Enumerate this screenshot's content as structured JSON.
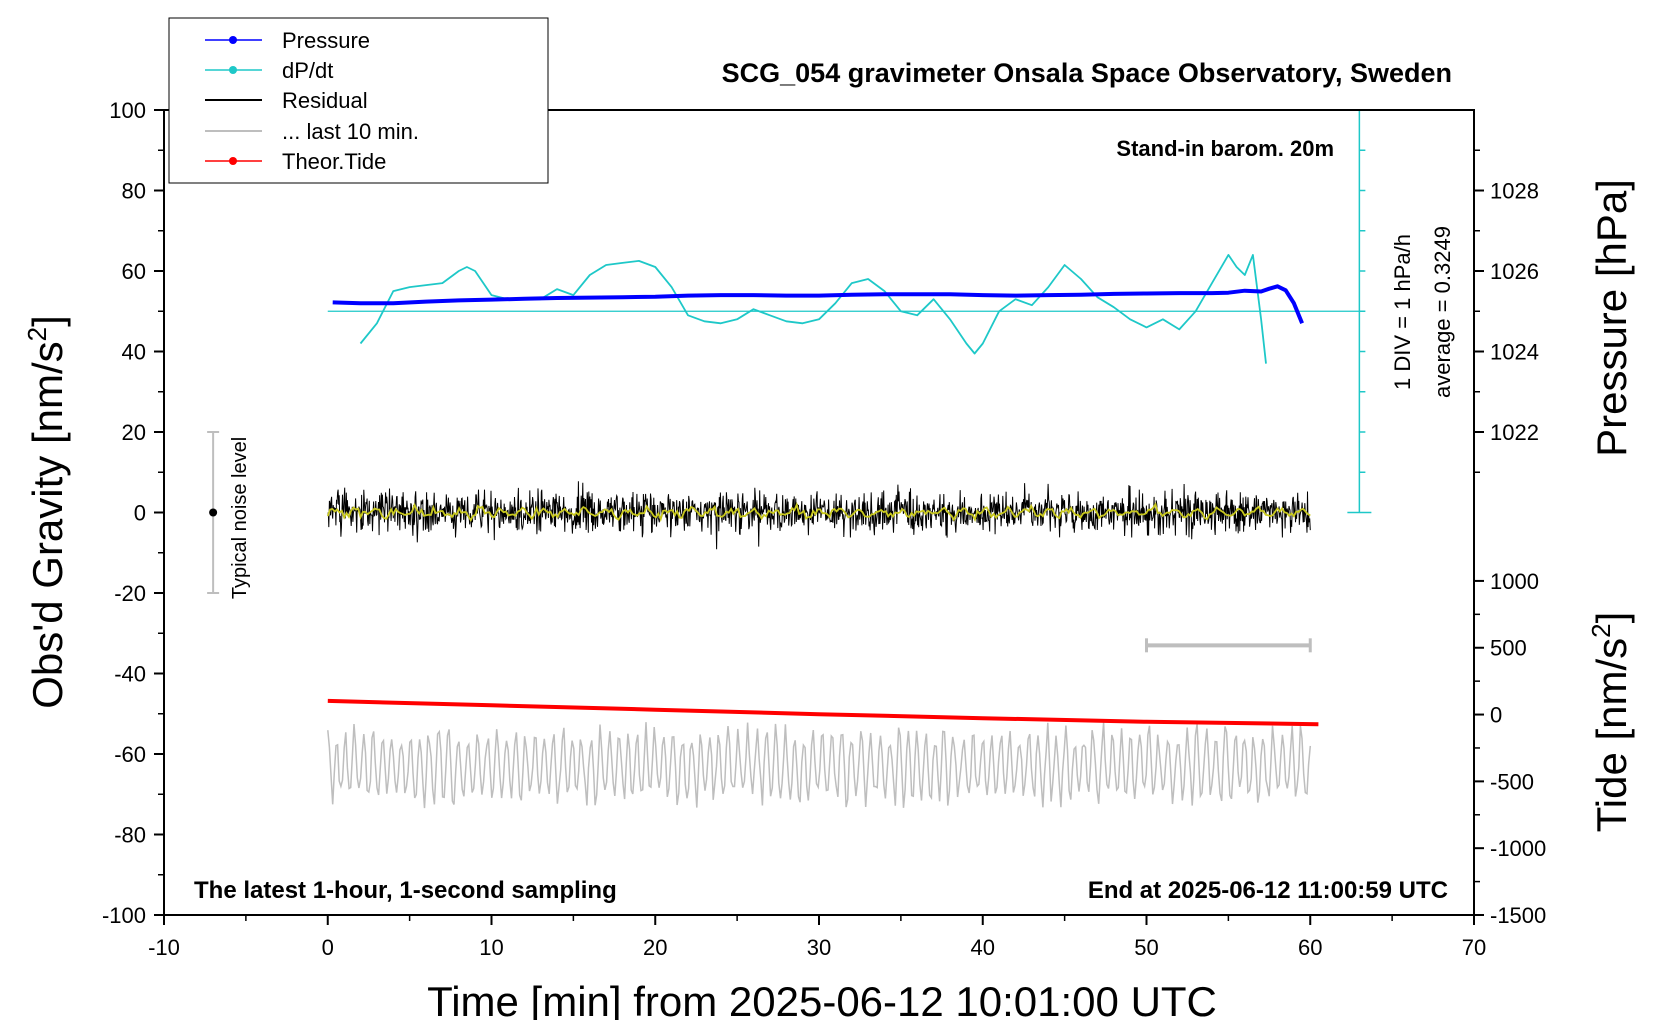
{
  "chart_data": {
    "type": "line",
    "title": "SCG_054 gravimeter Onsala Space Observatory, Sweden",
    "xlabel": "Time [min] from 2025-06-12 10:01:00 UTC",
    "ylabel": "Obs'd Gravity [nm/s",
    "ylabel_sup": "2",
    "ylabel_close": "]",
    "right_top_label": "Pressure [hPa]",
    "right_bottom_label": "Tide [nm/s",
    "right_bottom_sup": "2",
    "right_bottom_close": "]",
    "xlim": [
      -10,
      70
    ],
    "ylim": [
      -100,
      100
    ],
    "x_ticks": [
      -10,
      0,
      10,
      20,
      30,
      40,
      50,
      60,
      70
    ],
    "x_tick_labels": [
      "-10",
      "0",
      "10",
      "20",
      "30",
      "40",
      "50",
      "60",
      "70"
    ],
    "y_ticks": [
      -100,
      -80,
      -60,
      -40,
      -20,
      0,
      20,
      40,
      60,
      80,
      100
    ],
    "y_tick_labels": [
      "-100",
      "-80",
      "-60",
      "-40",
      "-20",
      "0",
      "20",
      "40",
      "60",
      "80",
      "100"
    ],
    "pressure_axis": {
      "ticks": [
        1022,
        1024,
        1026,
        1028
      ],
      "tick_labels": [
        "1022",
        "1024",
        "1026",
        "1028"
      ],
      "map_a": [
        1022,
        20
      ],
      "map_b": [
        1028,
        80
      ]
    },
    "tide_axis": {
      "ticks": [
        1000,
        500,
        0,
        -500,
        -1000,
        -1500
      ],
      "tick_labels": [
        "1000",
        "500",
        "0",
        "-500",
        "-1000",
        "-1500"
      ],
      "map_a": [
        1000,
        -17
      ],
      "map_b": [
        -1500,
        -100
      ]
    },
    "legend": [
      {
        "label": "Pressure",
        "color": "#0000ff",
        "marker": true
      },
      {
        "label": "dP/dt",
        "color": "#1ec8c8",
        "marker": true
      },
      {
        "label": "Residual",
        "color": "#000000",
        "marker": false
      },
      {
        "label": "... last 10 min.",
        "color": "#bebebe",
        "marker": false
      },
      {
        "label": "Theor.Tide",
        "color": "#ff0000",
        "marker": true
      }
    ],
    "annotations": {
      "barometer": "Stand-in barom. 20m",
      "div_label": "1 DIV = 1 hPa/h",
      "average_label": "average = 0.3249",
      "noise_label": "Typical noise level",
      "bottom_left": "The latest 1-hour, 1-second sampling",
      "bottom_right": "End at 2025-06-12 11:00:59 UTC"
    },
    "noise_bar": {
      "x": -7,
      "y_low": -20,
      "y_high": 20,
      "center": 0
    },
    "last10_bar": {
      "x_start": 50,
      "x_end": 60,
      "y": -33
    },
    "dpdt_reference_y": 50,
    "dpdt_scale": {
      "x": 63,
      "y_bottom": 0,
      "y_top": 100,
      "div": 10
    },
    "series": [
      {
        "name": "Pressure",
        "color": "#0000ff",
        "x": [
          0.3,
          2,
          4,
          6,
          8,
          10,
          12,
          14,
          16,
          18,
          20,
          22,
          24,
          26,
          28,
          30,
          32,
          34,
          36,
          38,
          40,
          42,
          44,
          46,
          48,
          50,
          52,
          54,
          55,
          56,
          57,
          57.5,
          58,
          58.5,
          59,
          59.5
        ],
        "y": [
          52.2,
          52.0,
          52.0,
          52.4,
          52.7,
          52.9,
          53.1,
          53.3,
          53.4,
          53.5,
          53.6,
          53.9,
          54.0,
          54.0,
          53.9,
          53.9,
          54.1,
          54.2,
          54.2,
          54.2,
          54.0,
          53.9,
          54.0,
          54.1,
          54.3,
          54.4,
          54.5,
          54.5,
          54.6,
          55.1,
          54.9,
          55.6,
          56.2,
          55.2,
          52.0,
          47.0
        ]
      },
      {
        "name": "dP/dt",
        "color": "#1ec8c8",
        "x": [
          2,
          3,
          4,
          5,
          6,
          7,
          8,
          8.5,
          9,
          10,
          11,
          12,
          13,
          14,
          15,
          16,
          17,
          18,
          19,
          20,
          21,
          22,
          23,
          24,
          25,
          26,
          27,
          28,
          29,
          30,
          31,
          32,
          33,
          34,
          35,
          36,
          37,
          38,
          39,
          39.5,
          40,
          41,
          42,
          43,
          44,
          45,
          46,
          47,
          48,
          49,
          50,
          51,
          52,
          53,
          54,
          55,
          55.5,
          56,
          56.5,
          57,
          57.3
        ],
        "y": [
          42,
          47,
          55,
          56,
          56.5,
          57,
          60,
          61,
          60,
          54,
          53,
          53,
          53,
          55.5,
          54,
          59,
          61.5,
          62,
          62.5,
          61,
          56,
          49,
          47.5,
          47,
          48,
          50.5,
          49,
          47.5,
          47,
          48,
          52,
          57,
          58,
          55,
          50,
          49,
          53,
          48,
          42,
          39.5,
          42,
          50,
          53,
          51.5,
          56,
          61.5,
          58,
          53.5,
          51,
          48,
          46,
          48,
          45.5,
          50,
          57,
          64,
          61,
          59,
          64,
          48,
          37
        ]
      },
      {
        "name": "Theor.Tide",
        "color": "#ff0000",
        "x": [
          0,
          10,
          20,
          30,
          40,
          50,
          60.5
        ],
        "y": [
          -46.8,
          -47.9,
          -49.0,
          -50.1,
          -51.1,
          -52.0,
          -52.6
        ]
      },
      {
        "name": "Residual",
        "color": "#000000",
        "x_range": [
          0,
          60
        ],
        "center": 0,
        "typical_range": [
          -16,
          17
        ]
      },
      {
        "name": "... last 10 min.",
        "color": "#bebebe",
        "x_range": [
          0,
          60
        ],
        "center": -63,
        "typical_range": [
          -77,
          -46
        ]
      },
      {
        "name": "Residual smoothed",
        "color": "#c8c81e",
        "x_range": [
          0,
          60
        ],
        "center": 0,
        "typical_range": [
          -3,
          3
        ]
      }
    ]
  }
}
